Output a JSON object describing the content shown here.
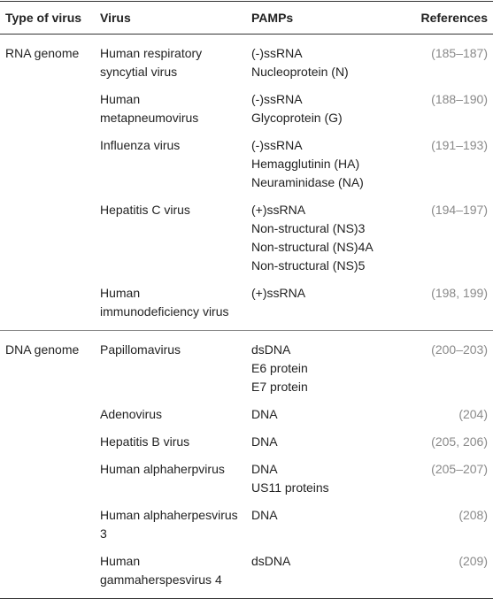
{
  "table": {
    "columns": [
      "Type of virus",
      "Virus",
      "PAMPs",
      "References"
    ],
    "sections": [
      {
        "type": "RNA genome",
        "rows": [
          {
            "virus": "Human respiratory syncytial virus",
            "pamps": [
              "(-)ssRNA",
              "Nucleoprotein (N)"
            ],
            "references": "(185–187)"
          },
          {
            "virus": "Human metapneumovirus",
            "pamps": [
              "(-)ssRNA",
              "Glycoprotein (G)"
            ],
            "references": "(188–190)"
          },
          {
            "virus": "Influenza virus",
            "pamps": [
              "(-)ssRNA",
              "Hemagglutinin (HA)",
              "Neuraminidase (NA)"
            ],
            "references": "(191–193)"
          },
          {
            "virus": "Hepatitis C virus",
            "pamps": [
              "(+)ssRNA",
              "Non-structural (NS)3",
              "Non-structural (NS)4A",
              "Non-structural (NS)5"
            ],
            "references": "(194–197)"
          },
          {
            "virus": "Human immunodeficiency virus",
            "pamps": [
              "(+)ssRNA"
            ],
            "references": "(198, 199)"
          }
        ]
      },
      {
        "type": "DNA genome",
        "rows": [
          {
            "virus": "Papillomavirus",
            "pamps": [
              "dsDNA",
              "E6 protein",
              "E7 protein"
            ],
            "references": "(200–203)"
          },
          {
            "virus": "Adenovirus",
            "pamps": [
              "DNA"
            ],
            "references": "(204)"
          },
          {
            "virus": "Hepatitis B virus",
            "pamps": [
              "DNA"
            ],
            "references": "(205, 206)"
          },
          {
            "virus": "Human alphaherpvirus",
            "pamps": [
              "DNA",
              "US11 proteins"
            ],
            "references": "(205–207)"
          },
          {
            "virus": "Human alphaherpesvirus 3",
            "pamps": [
              "DNA"
            ],
            "references": "(208)"
          },
          {
            "virus": "Human gammaherspesvirus 4",
            "pamps": [
              "dsDNA"
            ],
            "references": "(209)"
          }
        ]
      }
    ]
  }
}
